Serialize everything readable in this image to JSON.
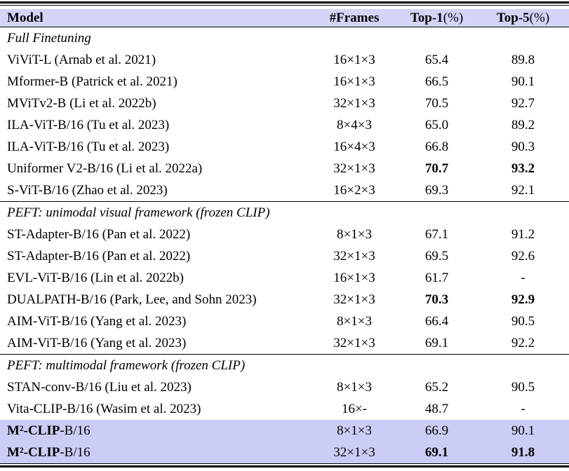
{
  "colors": {
    "page-bg": "#ffffff",
    "text-color": "#000000",
    "rule-color": "#000000",
    "header-bg": "#d4d4f8",
    "highlight-bg": "#cccdf6"
  },
  "header": {
    "model": "Model",
    "frames": "#Frames",
    "top1": "Top-1",
    "top1_suffix": "(%)",
    "top5": "Top-5",
    "top5_suffix": "(%)"
  },
  "sections": {
    "full_finetuning": "Full Finetuning",
    "peft_unimodal": "PEFT: unimodal visual framework (frozen CLIP)",
    "peft_multimodal": "PEFT: multimodal framework (frozen CLIP)"
  },
  "rows": [
    {
      "model": "ViViT-L (Arnab et al. 2021)",
      "frames": "16×1×3",
      "top1": "65.4",
      "top5": "89.8"
    },
    {
      "model": "Mformer-B (Patrick et al. 2021)",
      "frames": "16×1×3",
      "top1": "66.5",
      "top5": "90.1"
    },
    {
      "model": "MViTv2-B (Li et al. 2022b)",
      "frames": "32×1×3",
      "top1": "70.5",
      "top5": "92.7"
    },
    {
      "model": "ILA-ViT-B/16 (Tu et al. 2023)",
      "frames": "8×4×3",
      "top1": "65.0",
      "top5": "89.2"
    },
    {
      "model": "ILA-ViT-B/16 (Tu et al. 2023)",
      "frames": "16×4×3",
      "top1": "66.8",
      "top5": "90.3"
    },
    {
      "model": "Uniformer V2-B/16 (Li et al. 2022a)",
      "frames": "32×1×3",
      "top1": "70.7",
      "top5": "93.2"
    },
    {
      "model": "S-ViT-B/16 (Zhao et al. 2023)",
      "frames": "16×2×3",
      "top1": "69.3",
      "top5": "92.1"
    },
    {
      "model": "ST-Adapter-B/16 (Pan et al. 2022)",
      "frames": "8×1×3",
      "top1": "67.1",
      "top5": "91.2"
    },
    {
      "model": "ST-Adapter-B/16 (Pan et al. 2022)",
      "frames": "32×1×3",
      "top1": "69.5",
      "top5": "92.6"
    },
    {
      "model": "EVL-ViT-B/16 (Lin et al. 2022b)",
      "frames": "16×1×3",
      "top1": "61.7",
      "top5": "-"
    },
    {
      "model": "DUALPATH-B/16 (Park, Lee, and Sohn 2023)",
      "frames": "32×1×3",
      "top1": "70.3",
      "top5": "92.9"
    },
    {
      "model": "AIM-ViT-B/16 (Yang et al. 2023)",
      "frames": "8×1×3",
      "top1": "66.4",
      "top5": "90.5"
    },
    {
      "model": "AIM-ViT-B/16 (Yang et al. 2023)",
      "frames": "32×1×3",
      "top1": "69.1",
      "top5": "92.2"
    },
    {
      "model": "STAN-conv-B/16 (Liu et al. 2023)",
      "frames": "8×1×3",
      "top1": "65.2",
      "top5": "90.5"
    },
    {
      "model": "Vita-CLIP-B/16 (Wasim et al. 2023)",
      "frames": "16×-",
      "top1": "48.7",
      "top5": "-"
    },
    {
      "model_bold": "M²-CLIP",
      "model_rest": "-B/16",
      "frames": "8×1×3",
      "top1": "66.9",
      "top5": "90.1"
    },
    {
      "model_bold": "M²-CLIP",
      "model_rest": "-B/16",
      "frames": "32×1×3",
      "top1": "69.1",
      "top5": "91.8"
    }
  ]
}
